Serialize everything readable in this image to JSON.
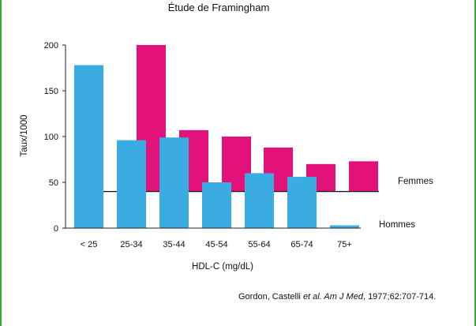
{
  "chart_data": {
    "type": "bar",
    "title": "Étude de Framingham",
    "xlabel": "HDL-C (mg/dL)",
    "ylabel": "Taux/1000",
    "categories": [
      "< 25",
      "25-34",
      "35-44",
      "45-54",
      "55-64",
      "65-74",
      "75+"
    ],
    "ylim": [
      0,
      200
    ],
    "yticks": [
      0,
      50,
      100,
      150,
      200
    ],
    "baseline_reference": 40,
    "series": [
      {
        "name": "Hommes",
        "color": "#3aace2",
        "values": [
          178,
          96,
          99,
          50,
          60,
          56,
          3
        ]
      },
      {
        "name": "Femmes",
        "color": "#e2127a",
        "values": [
          null,
          200,
          107,
          100,
          88,
          70,
          73
        ],
        "drawn_from": 40
      }
    ],
    "grid": false
  },
  "source": {
    "prefix": "Gordon, Castelli ",
    "italic": "et al. Am J Med",
    "suffix": ", 1977;62:707-714."
  }
}
